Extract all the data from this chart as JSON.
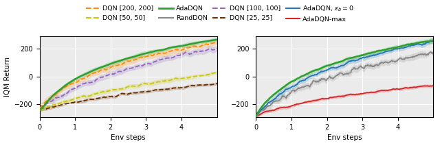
{
  "figsize": [
    6.4,
    2.19
  ],
  "dpi": 100,
  "xlim": [
    0,
    500000.0
  ],
  "xticks": [
    0,
    100000.0,
    200000.0,
    300000.0,
    400000.0
  ],
  "xticklabels": [
    "0",
    "1",
    "2",
    "3",
    "4"
  ],
  "xlabel": "Env steps",
  "ylabel": "IQM Return",
  "ylim": [
    -290,
    290
  ],
  "yticks": [
    -200,
    0,
    200
  ],
  "background_color": "#ffffff",
  "axes_facecolor": "#ebebeb",
  "grid_color": "#ffffff",
  "colors": {
    "ada": "#2ca02c",
    "dqn200": "#ff8c00",
    "dqn100": "#9467bd",
    "dqn50": "#c8c800",
    "dqn25": "#6b2e00",
    "ada_eps": "#1f77b4",
    "rand": "#888888",
    "ada_max": "#d62728"
  }
}
